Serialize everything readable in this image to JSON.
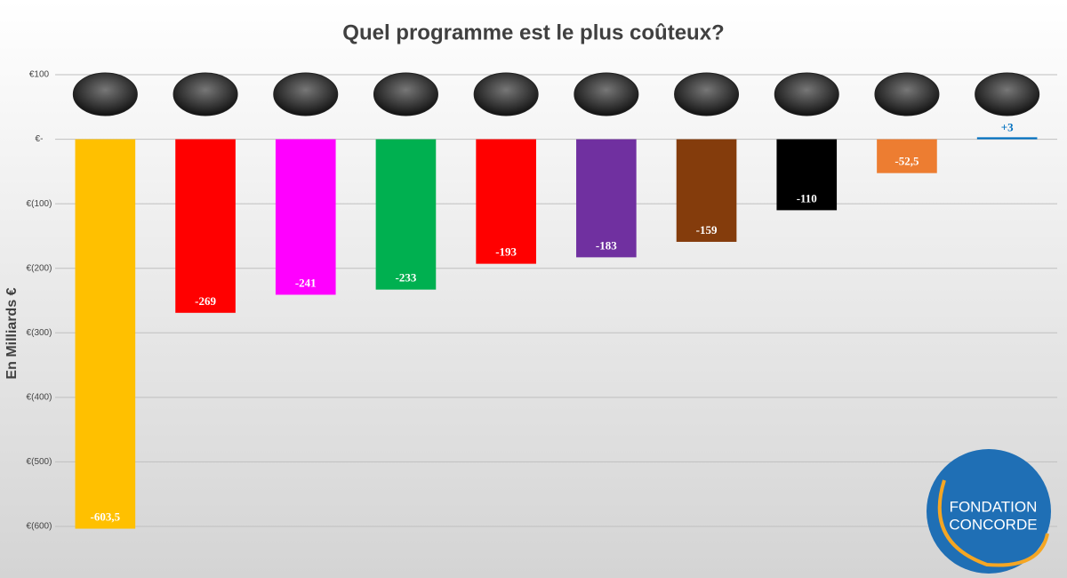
{
  "chart_data": {
    "type": "bar",
    "title": "Quel programme est le plus coûteux?",
    "y_label": "En Milliards €",
    "categories": [
      null,
      null,
      null,
      null,
      null,
      null,
      null,
      null,
      null,
      null
    ],
    "values": [
      -603.5,
      -269,
      -241,
      -233,
      -193,
      -183,
      -159,
      -110,
      -52.5,
      3
    ],
    "value_labels": [
      "-603,5",
      "-269",
      "-241",
      "-233",
      "-193",
      "-183",
      "-159",
      "-110",
      "-52,5",
      "+3"
    ],
    "colors": [
      "#ffc000",
      "#ff0000",
      "#ff00ff",
      "#00b050",
      "#ff0000",
      "#7030a0",
      "#843c0c",
      "#000000",
      "#ed7d31",
      "#0070c0"
    ],
    "ylim": [
      -600,
      100
    ],
    "yticks": [
      {
        "value": 100,
        "label": "€100"
      },
      {
        "value": 0,
        "label": "€-"
      },
      {
        "value": -100,
        "label": "€(100)"
      },
      {
        "value": -200,
        "label": "€(200)"
      },
      {
        "value": -300,
        "label": "€(300)"
      },
      {
        "value": -400,
        "label": "€(400)"
      },
      {
        "value": -500,
        "label": "€(500)"
      },
      {
        "value": -600,
        "label": "€(600)"
      }
    ],
    "grid": true,
    "logo": [
      "FONDATION",
      "CONCORDE"
    ]
  }
}
